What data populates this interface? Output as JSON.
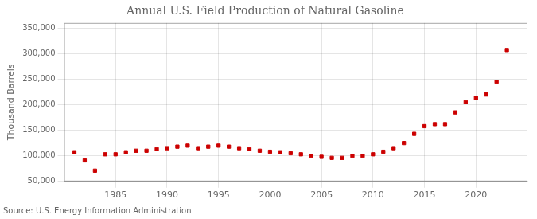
{
  "chart_data": {
    "type": "scatter",
    "title": "Annual U.S. Field Production of Natural Gasoline",
    "y_label": "Thousand Barrels",
    "annotation": "Source: U.S. Energy Information Administration",
    "x": [
      1981,
      1982,
      1983,
      1984,
      1985,
      1986,
      1987,
      1988,
      1989,
      1990,
      1991,
      1992,
      1993,
      1994,
      1995,
      1996,
      1997,
      1998,
      1999,
      2000,
      2001,
      2002,
      2003,
      2004,
      2005,
      2006,
      2007,
      2008,
      2009,
      2010,
      2011,
      2012,
      2013,
      2014,
      2015,
      2016,
      2017,
      2018,
      2019,
      2020,
      2021,
      2022,
      2023
    ],
    "values": [
      107000,
      91000,
      71000,
      103000,
      103000,
      107000,
      110000,
      110000,
      113000,
      115000,
      118000,
      120000,
      115000,
      118000,
      120000,
      118000,
      115000,
      113000,
      110000,
      108000,
      107000,
      105000,
      103000,
      100000,
      98000,
      96000,
      96000,
      100000,
      100000,
      103000,
      108000,
      115000,
      125000,
      143000,
      158000,
      162000,
      162000,
      185000,
      205000,
      213000,
      220000,
      245000,
      307000
    ],
    "color": "#CC0000",
    "marker": "square",
    "grid": true,
    "xlim": [
      1980,
      2025
    ],
    "xticks": [
      1985,
      1990,
      1995,
      2000,
      2005,
      2010,
      2015,
      2020
    ],
    "ylim": [
      50000,
      360000
    ],
    "yticks": [
      {
        "value": 50000,
        "label": "50,000"
      },
      {
        "value": 100000,
        "label": "100,000"
      },
      {
        "value": 150000,
        "label": "150,000"
      },
      {
        "value": 200000,
        "label": "200,000"
      },
      {
        "value": 250000,
        "label": "250,000"
      },
      {
        "value": 300000,
        "label": "300,000"
      },
      {
        "value": 350000,
        "label": "350,000"
      }
    ]
  }
}
